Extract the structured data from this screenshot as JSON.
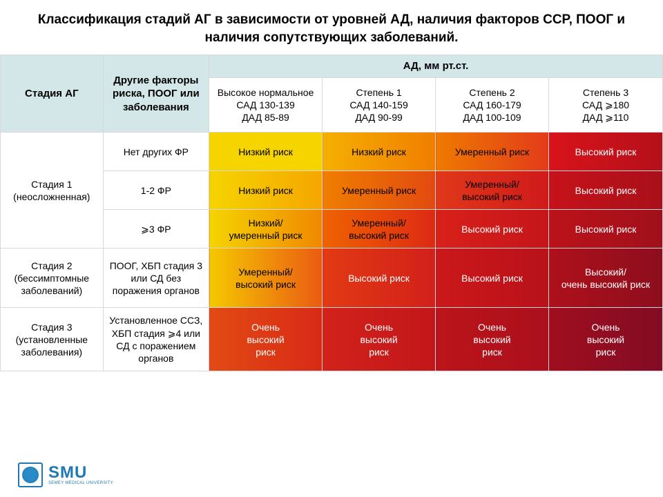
{
  "title": "Классификация стадий АГ в зависимости от уровней АД, наличия факторов ССР, ПООГ и наличия сопутствующих заболеваний.",
  "header": {
    "col1": "Стадия АГ",
    "col2": "Другие факторы риска, ПООГ или заболевания",
    "bp_group": "АД, мм рт.ст.",
    "bp_cols": [
      "Высокое нормальное\nСАД 130-139\nДАД 85-89",
      "Степень 1\nСАД 140-159\nДАД 90-99",
      "Степень 2\nСАД 160-179\nДАД 100-109",
      "Степень 3\nСАД ⩾180\nДАД ⩾110"
    ]
  },
  "stages": [
    {
      "label": "Стадия 1\n(неосложненная)",
      "rows": [
        {
          "factors": "Нет других ФР",
          "cells": [
            {
              "text": "Низкий риск",
              "bg": "#f5d400",
              "fg": "#000"
            },
            {
              "text": "Низкий риск",
              "bg": "linear-gradient(90deg,#f5b000,#f07e00)",
              "fg": "#000"
            },
            {
              "text": "Умеренный риск",
              "bg": "linear-gradient(90deg,#ef7a00,#e23b1a)",
              "fg": "#000"
            },
            {
              "text": "Высокий риск",
              "bg": "linear-gradient(90deg,#d8131a,#b5101a)",
              "fg": "#fff"
            }
          ]
        },
        {
          "factors": "1-2 ФР",
          "cells": [
            {
              "text": "Низкий риск",
              "bg": "linear-gradient(90deg,#f5d400,#f5a600)",
              "fg": "#000"
            },
            {
              "text": "Умеренный риск",
              "bg": "linear-gradient(90deg,#f07e00,#e24a10)",
              "fg": "#000"
            },
            {
              "text": "Умеренный/\nвысокий риск",
              "bg": "linear-gradient(90deg,#e0381a,#cf1a1a)",
              "fg": "#000"
            },
            {
              "text": "Высокий риск",
              "bg": "linear-gradient(90deg,#c7121a,#a8101a)",
              "fg": "#fff"
            }
          ]
        },
        {
          "factors": "⩾3 ФР",
          "cells": [
            {
              "text": "Низкий/\nумеренный риск",
              "bg": "linear-gradient(90deg,#f5d400,#f08800)",
              "fg": "#000"
            },
            {
              "text": "Умеренный/\nвысокий риск",
              "bg": "linear-gradient(90deg,#ef6300,#dd2a14)",
              "fg": "#000"
            },
            {
              "text": "Высокий риск",
              "bg": "linear-gradient(90deg,#d9201a,#c5151a)",
              "fg": "#fff"
            },
            {
              "text": "Высокий риск",
              "bg": "linear-gradient(90deg,#bc121a,#a0101a)",
              "fg": "#fff"
            }
          ]
        }
      ]
    },
    {
      "label": "Стадия 2\n(бессимптомные заболеваний)",
      "rows": [
        {
          "factors": "ПООГ, ХБП стадия 3 или СД без поражения органов",
          "cells": [
            {
              "text": "Умеренный/\nвысокий риск",
              "bg": "linear-gradient(90deg,#f5c800,#ea5b12)",
              "fg": "#000"
            },
            {
              "text": "Высокий риск",
              "bg": "linear-gradient(90deg,#e23a14,#d2201a)",
              "fg": "#fff"
            },
            {
              "text": "Высокий риск",
              "bg": "linear-gradient(90deg,#cb181a,#b8121a)",
              "fg": "#fff"
            },
            {
              "text": "Высокий/\nочень высокий риск",
              "bg": "linear-gradient(90deg,#ae101a,#8d0e1e)",
              "fg": "#fff"
            }
          ]
        }
      ]
    },
    {
      "label": "Стадия 3\n(установленные заболевания)",
      "rows": [
        {
          "factors": "Установленное ССЗ, ХБП стадия ⩾4 или СД с поражением органов",
          "cells": [
            {
              "text": "Очень\nвысокий\nриск",
              "bg": "linear-gradient(90deg,#e24a14,#d82a16)",
              "fg": "#fff"
            },
            {
              "text": "Очень\nвысокий\nриск",
              "bg": "linear-gradient(90deg,#d2221a,#c2161a)",
              "fg": "#fff"
            },
            {
              "text": "Очень\nвысокий\nриск",
              "bg": "linear-gradient(90deg,#bc141a,#aa101c)",
              "fg": "#fff"
            },
            {
              "text": "Очень\nвысокий\nриск",
              "bg": "linear-gradient(90deg,#a00e1e,#820c24)",
              "fg": "#fff"
            }
          ]
        }
      ]
    }
  ],
  "col_widths": [
    "15.5%",
    "16%",
    "17.1%",
    "17.1%",
    "17.1%",
    "17.2%"
  ],
  "row_heights": {
    "risk_row": "56px",
    "stage2_row": "86px",
    "stage3_row": "92px"
  },
  "logo": {
    "name": "SMU",
    "sub": "SEMEY MEDICAL UNIVERSITY"
  }
}
